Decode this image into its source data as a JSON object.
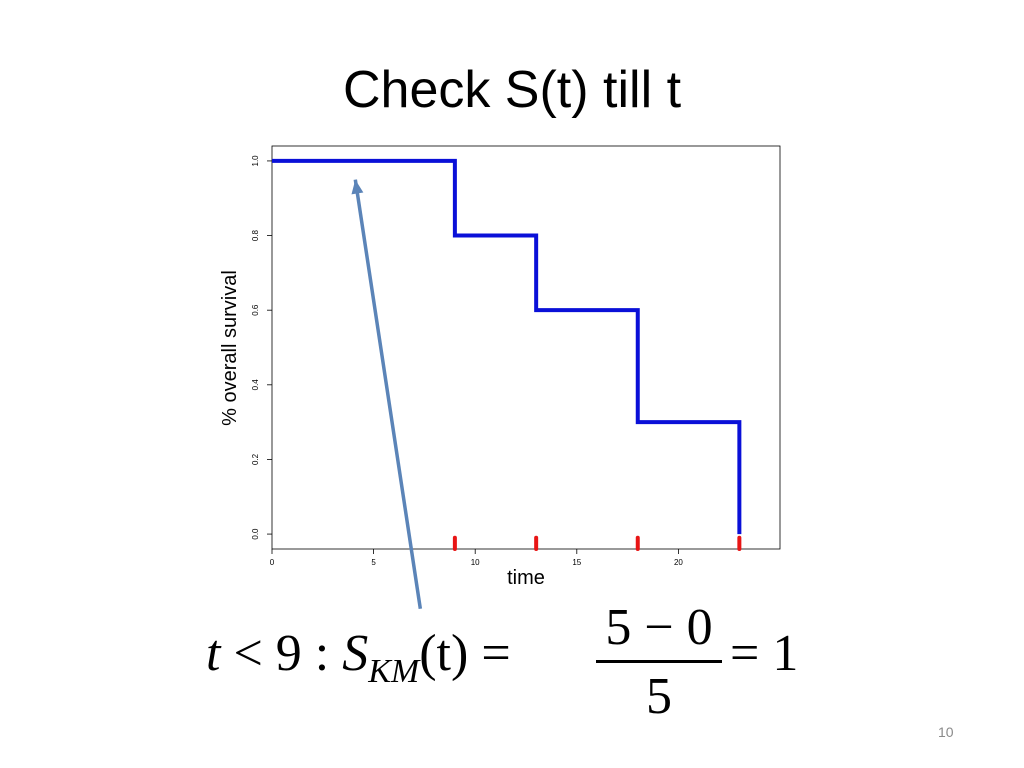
{
  "slide": {
    "title": "Check S(t) till t",
    "page_number": "10"
  },
  "formula": {
    "lhs_var": "t",
    "lhs_ineq": " < 9 : ",
    "s_symbol": "S",
    "s_subscript": "KM",
    "s_arg": "(t) =",
    "numerator": "5 − 0",
    "denominator": "5",
    "rhs": "= 1"
  },
  "colors": {
    "curve": "#0a10d8",
    "censor_marks": "#e81515",
    "arrow": "#5b84b8"
  },
  "chart_data": {
    "type": "line",
    "subtype": "step",
    "xlabel": "time",
    "ylabel": "% overall survival",
    "xlim": [
      0,
      25
    ],
    "ylim": [
      -0.04,
      1.04
    ],
    "xticks": [
      0,
      5,
      10,
      15,
      20
    ],
    "yticks": [
      0.0,
      0.2,
      0.4,
      0.6,
      0.8,
      1.0
    ],
    "xtick_labels": [
      "0",
      "5",
      "10",
      "15",
      "20"
    ],
    "ytick_labels": [
      "0.0",
      "0.2",
      "0.4",
      "0.6",
      "0.8",
      "1.0"
    ],
    "grid": false,
    "series": [
      {
        "x": [
          0,
          9,
          9,
          13,
          13,
          18,
          18,
          23,
          23
        ],
        "y": [
          1.0,
          1.0,
          0.8,
          0.8,
          0.6,
          0.6,
          0.3,
          0.3,
          0.0
        ]
      }
    ],
    "event_marks": {
      "x": [
        9,
        13,
        18,
        23
      ]
    },
    "annotation": {
      "type": "arrow",
      "from": {
        "x": 7.3,
        "y": -0.2
      },
      "to": {
        "x": 4.1,
        "y": 0.95
      }
    }
  }
}
